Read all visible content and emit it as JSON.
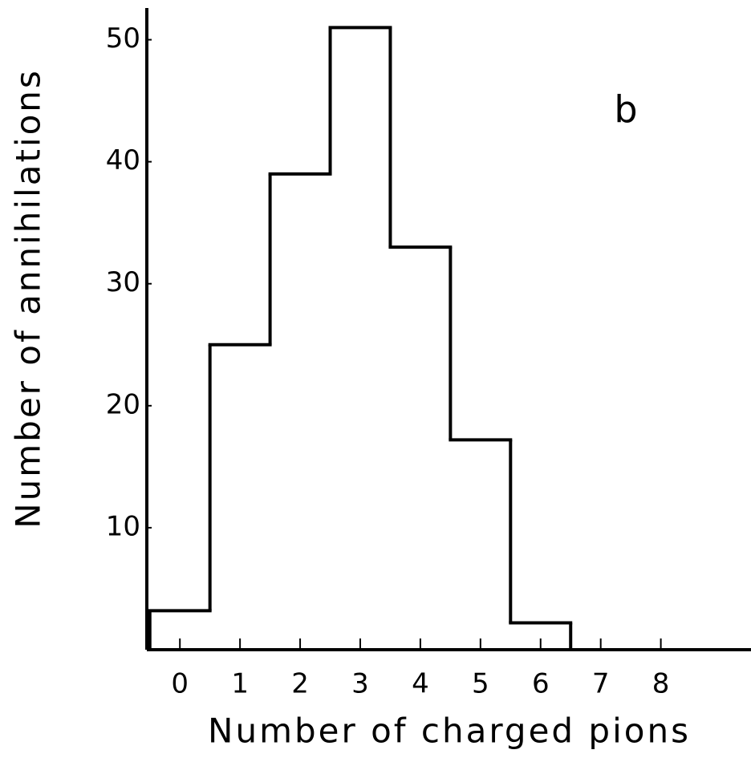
{
  "chart_data": {
    "type": "histogram",
    "xlabel": "Number of charged pions",
    "ylabel": "Number of annihilations",
    "annotation": "b",
    "bins": [
      -0.5,
      0.5,
      1.5,
      2.5,
      3.5,
      4.5,
      5.5,
      6.5,
      7.5,
      8.5
    ],
    "values": [
      3.2,
      25,
      39,
      51,
      33,
      17.2,
      2.2,
      0,
      0
    ],
    "color": "#000000",
    "xlim": [
      -0.55,
      9.5
    ],
    "xticks": [
      0,
      1,
      2,
      3,
      4,
      5,
      6,
      7,
      8
    ],
    "ylim": [
      0,
      52.6
    ],
    "yticks": [
      10,
      20,
      30,
      40,
      50
    ],
    "grid": false
  }
}
